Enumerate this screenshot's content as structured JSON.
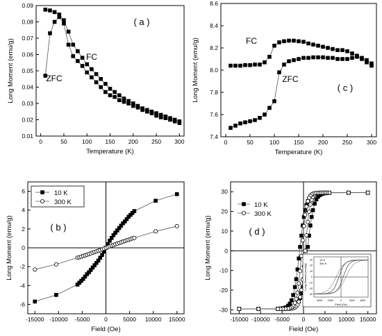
{
  "chart_data": [
    {
      "type": "scatter",
      "panel_label": "( a )",
      "xlabel": "Temperature (K)",
      "ylabel": "Long Moment (emu/g)",
      "xlim": [
        -10,
        310
      ],
      "ylim": [
        0.01,
        0.09
      ],
      "xticks": [
        0,
        50,
        100,
        150,
        200,
        250,
        300
      ],
      "yticks": [
        0.01,
        0.02,
        0.03,
        0.04,
        0.05,
        0.06,
        0.07,
        0.08,
        0.09
      ],
      "ytick_labels": [
        "0.01",
        "0.02",
        "0.03",
        "0.04",
        "0.05",
        "0.06",
        "0.07",
        "0.08",
        "0.09"
      ],
      "xtick_labels": [
        "0",
        "50",
        "100",
        "150",
        "200",
        "250",
        "300"
      ],
      "annotations": [
        "FC",
        "ZFC"
      ],
      "series": [
        {
          "name": "FC",
          "marker": "square",
          "x": [
            10,
            20,
            30,
            40,
            50,
            60,
            70,
            80,
            90,
            100,
            110,
            120,
            130,
            140,
            150,
            160,
            170,
            180,
            190,
            200,
            210,
            220,
            230,
            240,
            250,
            260,
            270,
            280,
            290,
            300
          ],
          "y": [
            0.0875,
            0.087,
            0.086,
            0.0845,
            0.081,
            0.074,
            0.066,
            0.062,
            0.058,
            0.054,
            0.051,
            0.048,
            0.045,
            0.042,
            0.039,
            0.037,
            0.035,
            0.033,
            0.0315,
            0.03,
            0.0285,
            0.027,
            0.026,
            0.025,
            0.024,
            0.023,
            0.022,
            0.021,
            0.02,
            0.019
          ]
        },
        {
          "name": "ZFC",
          "marker": "square",
          "x": [
            10,
            20,
            30,
            40,
            50,
            60,
            70,
            80,
            90,
            100,
            110,
            120,
            130,
            140,
            150,
            160,
            170,
            180,
            190,
            200,
            210,
            220,
            230,
            240,
            250,
            260,
            270,
            280,
            290,
            300
          ],
          "y": [
            0.047,
            0.073,
            0.08,
            0.083,
            0.079,
            0.066,
            0.059,
            0.056,
            0.053,
            0.049,
            0.046,
            0.043,
            0.04,
            0.037,
            0.035,
            0.034,
            0.032,
            0.031,
            0.03,
            0.0285,
            0.0275,
            0.026,
            0.025,
            0.024,
            0.0225,
            0.0215,
            0.021,
            0.02,
            0.019,
            0.018
          ]
        }
      ]
    },
    {
      "type": "scatter",
      "panel_label": "( c )",
      "xlabel": "Temperature (K)",
      "ylabel": "Long Moment (emu/g)",
      "xlim": [
        -10,
        310
      ],
      "ylim": [
        7.4,
        8.6
      ],
      "xticks": [
        0,
        50,
        100,
        150,
        200,
        250,
        300
      ],
      "yticks": [
        7.4,
        7.6,
        7.8,
        8.0,
        8.2,
        8.4,
        8.6
      ],
      "ytick_labels": [
        "7.4",
        "7.6",
        "7.8",
        "8.0",
        "8.2",
        "8.4",
        "8.6"
      ],
      "xtick_labels": [
        "0",
        "50",
        "100",
        "150",
        "200",
        "250",
        "300"
      ],
      "annotations": [
        "FC",
        "ZFC"
      ],
      "series": [
        {
          "name": "FC",
          "marker": "square",
          "x": [
            10,
            20,
            30,
            40,
            50,
            60,
            70,
            80,
            90,
            100,
            110,
            120,
            130,
            140,
            150,
            160,
            170,
            180,
            190,
            200,
            210,
            220,
            230,
            240,
            250,
            260,
            270,
            280,
            290,
            300
          ],
          "y": [
            8.04,
            8.04,
            8.04,
            8.045,
            8.045,
            8.05,
            8.05,
            8.07,
            8.12,
            8.22,
            8.25,
            8.26,
            8.265,
            8.265,
            8.26,
            8.255,
            8.24,
            8.23,
            8.22,
            8.21,
            8.2,
            8.19,
            8.18,
            8.18,
            8.17,
            8.15,
            8.13,
            8.1,
            8.07,
            8.04
          ]
        },
        {
          "name": "ZFC",
          "marker": "square",
          "x": [
            10,
            20,
            30,
            40,
            50,
            60,
            70,
            80,
            90,
            100,
            110,
            120,
            130,
            140,
            150,
            160,
            170,
            180,
            190,
            200,
            210,
            220,
            230,
            240,
            250,
            260,
            270,
            280,
            290,
            300
          ],
          "y": [
            7.48,
            7.5,
            7.52,
            7.53,
            7.54,
            7.55,
            7.57,
            7.6,
            7.66,
            7.72,
            7.98,
            8.05,
            8.08,
            8.09,
            8.1,
            8.11,
            8.11,
            8.115,
            8.115,
            8.115,
            8.11,
            8.11,
            8.1,
            8.1,
            8.1,
            8.11,
            8.12,
            8.11,
            8.09,
            8.06
          ]
        }
      ]
    },
    {
      "type": "line",
      "panel_label": "( b )",
      "xlabel": "Field (Oe)",
      "ylabel": "Long Moment (emu/g)",
      "xlim": [
        -16500,
        16500
      ],
      "ylim": [
        -7,
        7
      ],
      "xticks": [
        -15000,
        -10000,
        -5000,
        0,
        5000,
        10000,
        15000
      ],
      "yticks": [
        -6,
        -4,
        -2,
        0,
        2,
        4,
        6
      ],
      "ytick_labels": [
        "-6",
        "-4",
        "-2",
        "0",
        "2",
        "4",
        "6"
      ],
      "xtick_labels": [
        "-15000",
        "-10000",
        "-5000",
        "0",
        "5000",
        "10000",
        "15000"
      ],
      "legend": {
        "position": "top-left",
        "entries": [
          "10 K",
          "300 K"
        ]
      },
      "series": [
        {
          "name": "10 K",
          "marker": "filled-square",
          "x": [
            -15000,
            -10500,
            -6000,
            -5600,
            -5200,
            -4800,
            -4400,
            -4000,
            -3600,
            -3200,
            -2800,
            -2400,
            -2000,
            -1600,
            -1200,
            -800,
            -400,
            0,
            400,
            800,
            1200,
            1600,
            2000,
            2400,
            2800,
            3200,
            3600,
            4000,
            4400,
            4800,
            5200,
            5600,
            6000,
            10500,
            15000
          ],
          "y": [
            -5.7,
            -5.0,
            -3.9,
            -3.7,
            -3.5,
            -3.3,
            -3.05,
            -2.8,
            -2.6,
            -2.35,
            -2.1,
            -1.85,
            -1.6,
            -1.35,
            -1.05,
            -0.75,
            -0.4,
            0.0,
            0.4,
            0.75,
            1.05,
            1.35,
            1.6,
            1.85,
            2.1,
            2.35,
            2.6,
            2.8,
            3.05,
            3.3,
            3.5,
            3.7,
            3.9,
            5.0,
            5.7
          ]
        },
        {
          "name": "300 K",
          "marker": "open-circle",
          "x": [
            -15000,
            -10500,
            -6000,
            -5600,
            -5200,
            -4800,
            -4400,
            -4000,
            -3600,
            -3200,
            -2800,
            -2400,
            -2000,
            -1600,
            -1200,
            -800,
            -400,
            0,
            400,
            800,
            1200,
            1600,
            2000,
            2400,
            2800,
            3200,
            3600,
            4000,
            4400,
            4800,
            5200,
            5600,
            6000,
            10500,
            15000
          ],
          "y": [
            -2.3,
            -1.75,
            -1.05,
            -1.0,
            -0.93,
            -0.86,
            -0.8,
            -0.73,
            -0.66,
            -0.59,
            -0.52,
            -0.45,
            -0.38,
            -0.31,
            -0.24,
            -0.17,
            -0.09,
            0.0,
            0.09,
            0.17,
            0.24,
            0.31,
            0.38,
            0.45,
            0.52,
            0.59,
            0.66,
            0.73,
            0.8,
            0.86,
            0.93,
            1.0,
            1.05,
            1.75,
            2.3
          ]
        }
      ]
    },
    {
      "type": "line",
      "panel_label": "( d )",
      "xlabel": "Field (Oe)",
      "ylabel": "Long Moment (emu/g)",
      "xlim": [
        -17000,
        17000
      ],
      "ylim": [
        -32,
        35
      ],
      "xticks": [
        -15000,
        -10000,
        -5000,
        0,
        5000,
        10000,
        15000
      ],
      "yticks": [
        -30,
        -20,
        -10,
        0,
        10,
        20,
        30
      ],
      "ytick_labels": [
        "-30",
        "-20",
        "-10",
        "0",
        "10",
        "20",
        "30"
      ],
      "xtick_labels": [
        "-15000",
        "-10000",
        "-5000",
        "0",
        "5000",
        "10000",
        "15000"
      ],
      "legend": {
        "position": "top-left",
        "entries": [
          "10 K",
          "300 K"
        ]
      },
      "inset": {
        "legend": [
          "10 K",
          "300 K"
        ],
        "xticks": [
          -4000,
          -2000,
          0,
          2000,
          4000
        ],
        "xtick_labels": [
          "-4000",
          "-2000",
          "0",
          "2000",
          "4000"
        ],
        "yticks": [
          -30,
          -20,
          -10,
          0,
          10,
          20,
          30
        ],
        "ytick_labels": [
          "-30",
          "-20",
          "-10",
          "0",
          "10",
          "20",
          "30"
        ],
        "xlabel": "Field (Oe)",
        "ylabel": "Long Moment (emu/g)"
      },
      "series": [
        {
          "name": "10 K",
          "marker": "filled-square",
          "coercivity": 900,
          "ms": 29.5,
          "width": 1500
        },
        {
          "name": "300 K",
          "marker": "open-circle",
          "coercivity": 400,
          "ms": 29.5,
          "width": 1100
        }
      ]
    }
  ]
}
